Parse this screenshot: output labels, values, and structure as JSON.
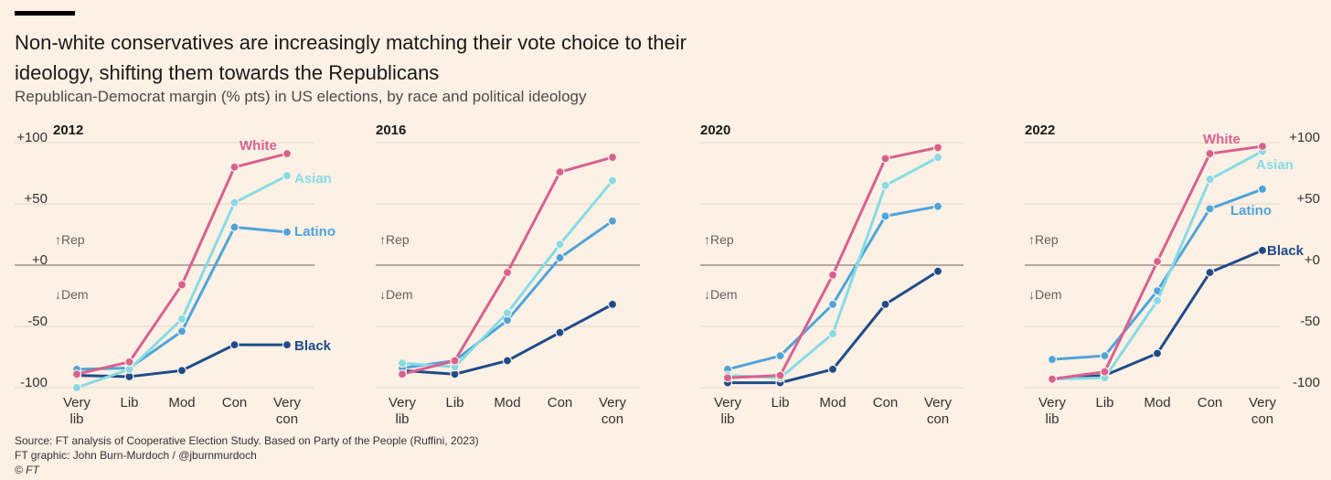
{
  "header": {
    "title": "Non-white conservatives are increasingly matching their vote choice to their ideology, shifting them towards the Republicans",
    "subtitle": "Republican-Democrat margin (% pts) in US elections, by race and political ideology"
  },
  "footer": {
    "source": "Source: FT analysis of Cooperative Election Study. Based on Party of the People (Ruffini, 2023)",
    "credit": "FT graphic: John Burn-Murdoch / @jburnmurdoch",
    "copyright": "© FT"
  },
  "colors": {
    "White": "#d9608f",
    "Asian": "#86dbe4",
    "Latino": "#4ea4d9",
    "Black": "#1f4b8a",
    "background": "#fdf1e5"
  },
  "annotations": {
    "rep": "↑Rep",
    "dem": "↓Dem"
  },
  "chart_data": [
    {
      "type": "line",
      "title": "2012",
      "categories": [
        [
          "Very",
          "lib"
        ],
        [
          "Lib"
        ],
        [
          "Mod"
        ],
        [
          "Con"
        ],
        [
          "Very",
          "con"
        ]
      ],
      "yticks": [
        "+100",
        "+50",
        "+0",
        "-50",
        "-100"
      ],
      "ylim": [
        -100,
        100
      ],
      "series": [
        {
          "name": "Black",
          "values": [
            -90,
            -91,
            -86,
            -65,
            -65
          ]
        },
        {
          "name": "Latino",
          "values": [
            -85,
            -84,
            -54,
            31,
            27
          ]
        },
        {
          "name": "Asian",
          "values": [
            -100,
            -85,
            -44,
            51,
            73
          ]
        },
        {
          "name": "White",
          "values": [
            -89,
            -79,
            -16,
            80,
            91
          ]
        }
      ]
    },
    {
      "type": "line",
      "title": "2016",
      "categories": [
        [
          "Very",
          "lib"
        ],
        [
          "Lib"
        ],
        [
          "Mod"
        ],
        [
          "Con"
        ],
        [
          "Very",
          "con"
        ]
      ],
      "yticks": [
        "+100",
        "+50",
        "+0",
        "-50",
        "-100"
      ],
      "ylim": [
        -100,
        100
      ],
      "series": [
        {
          "name": "Black",
          "values": [
            -86,
            -89,
            -78,
            -55,
            -32
          ]
        },
        {
          "name": "Latino",
          "values": [
            -84,
            -78,
            -45,
            6,
            36
          ]
        },
        {
          "name": "Asian",
          "values": [
            -80,
            -83,
            -39,
            17,
            69
          ]
        },
        {
          "name": "White",
          "values": [
            -89,
            -78,
            -6,
            76,
            88
          ]
        }
      ]
    },
    {
      "type": "line",
      "title": "2020",
      "categories": [
        [
          "Very",
          "lib"
        ],
        [
          "Lib"
        ],
        [
          "Mod"
        ],
        [
          "Con"
        ],
        [
          "Very",
          "con"
        ]
      ],
      "yticks": [
        "+100",
        "+50",
        "+0",
        "-50",
        "-100"
      ],
      "ylim": [
        -100,
        100
      ],
      "series": [
        {
          "name": "Black",
          "values": [
            -96,
            -96,
            -85,
            -32,
            -5
          ]
        },
        {
          "name": "Latino",
          "values": [
            -85,
            -74,
            -32,
            40,
            48
          ]
        },
        {
          "name": "Asian",
          "values": [
            -90,
            -92,
            -56,
            65,
            88
          ]
        },
        {
          "name": "White",
          "values": [
            -92,
            -90,
            -8,
            87,
            96
          ]
        }
      ]
    },
    {
      "type": "line",
      "title": "2022",
      "categories": [
        [
          "Very",
          "lib"
        ],
        [
          "Lib"
        ],
        [
          "Mod"
        ],
        [
          "Con"
        ],
        [
          "Very",
          "con"
        ]
      ],
      "yticks": [
        "+100",
        "+50",
        "+0",
        "-50",
        "-100"
      ],
      "ylim": [
        -100,
        100
      ],
      "series": [
        {
          "name": "Black",
          "values": [
            -93,
            -90,
            -72,
            -6,
            12
          ]
        },
        {
          "name": "Latino",
          "values": [
            -77,
            -74,
            -21,
            46,
            62
          ]
        },
        {
          "name": "Asian",
          "values": [
            -93,
            -92,
            -29,
            70,
            93
          ]
        },
        {
          "name": "White",
          "values": [
            -93,
            -87,
            3,
            91,
            97
          ]
        }
      ]
    }
  ]
}
